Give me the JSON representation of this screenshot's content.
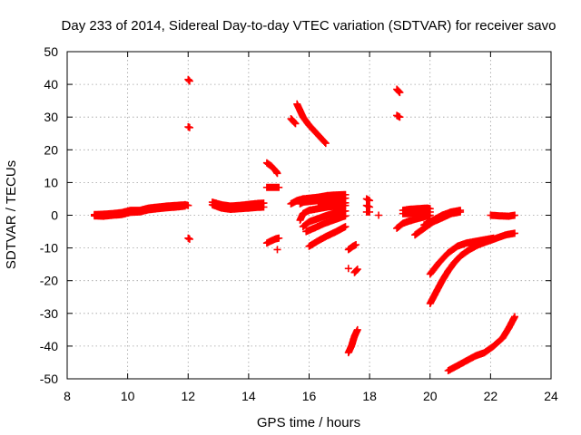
{
  "chart_data": {
    "type": "scatter",
    "title": "Day 233 of 2014, Sidereal Day-to-day VTEC variation (SDTVAR) for receiver savo",
    "xlabel": "GPS time / hours",
    "ylabel": "SDTVAR / TECUs",
    "xlim": [
      8,
      24
    ],
    "ylim": [
      -50,
      50
    ],
    "xticks": [
      8,
      10,
      12,
      14,
      16,
      18,
      20,
      22,
      24
    ],
    "yticks": [
      -50,
      -40,
      -30,
      -20,
      -10,
      0,
      10,
      20,
      30,
      40,
      50
    ],
    "grid": true,
    "marker": "+",
    "colors": {
      "series": "#ff0000",
      "axis": "#000000",
      "grid": "#a0a0a0"
    },
    "series": [
      {
        "name": "s1",
        "points": [
          [
            8.9,
            0.2
          ],
          [
            9.2,
            0.3
          ],
          [
            9.5,
            0.5
          ],
          [
            9.8,
            0.8
          ],
          [
            10.1,
            1.5
          ],
          [
            10.4,
            1.5
          ],
          [
            10.7,
            2.2
          ],
          [
            11.0,
            2.5
          ],
          [
            11.3,
            2.8
          ],
          [
            11.6,
            3.0
          ],
          [
            11.9,
            3.2
          ],
          [
            12.0,
            3.0
          ]
        ]
      },
      {
        "name": "s2",
        "points": [
          [
            8.9,
            -0.2
          ],
          [
            9.2,
            -0.3
          ],
          [
            9.5,
            0.0
          ],
          [
            9.8,
            0.2
          ],
          [
            10.1,
            0.9
          ],
          [
            10.4,
            1.0
          ],
          [
            10.7,
            1.7
          ],
          [
            11.0,
            2.0
          ],
          [
            11.3,
            2.3
          ],
          [
            11.6,
            2.5
          ],
          [
            11.9,
            2.8
          ]
        ]
      },
      {
        "name": "s3",
        "points": [
          [
            12.0,
            41.5
          ],
          [
            12.05,
            41.0
          ]
        ]
      },
      {
        "name": "s4",
        "points": [
          [
            12.0,
            27.0
          ],
          [
            12.05,
            26.8
          ]
        ]
      },
      {
        "name": "s5",
        "points": [
          [
            12.0,
            -7.0
          ],
          [
            12.05,
            -7.3
          ]
        ]
      },
      {
        "name": "s6",
        "points": [
          [
            12.8,
            4.0
          ],
          [
            13.1,
            3.2
          ],
          [
            13.4,
            2.8
          ],
          [
            13.7,
            3.0
          ],
          [
            14.0,
            3.3
          ],
          [
            14.3,
            3.6
          ],
          [
            14.5,
            3.7
          ]
        ]
      },
      {
        "name": "s7",
        "points": [
          [
            12.8,
            3.2
          ],
          [
            13.1,
            2.2
          ],
          [
            13.4,
            1.8
          ],
          [
            13.7,
            2.0
          ],
          [
            14.0,
            2.2
          ],
          [
            14.3,
            2.4
          ],
          [
            14.5,
            2.5
          ]
        ]
      },
      {
        "name": "s8",
        "points": [
          [
            14.6,
            16.0
          ],
          [
            14.75,
            15.0
          ],
          [
            14.9,
            13.5
          ],
          [
            14.95,
            12.8
          ]
        ]
      },
      {
        "name": "s9",
        "points": [
          [
            14.6,
            8.5
          ],
          [
            14.75,
            8.5
          ],
          [
            14.9,
            8.5
          ],
          [
            15.0,
            8.5
          ]
        ]
      },
      {
        "name": "s10",
        "points": [
          [
            14.6,
            -8.5
          ],
          [
            14.75,
            -7.8
          ],
          [
            14.9,
            -7.2
          ],
          [
            15.0,
            -7.0
          ]
        ]
      },
      {
        "name": "s11",
        "points": [
          [
            14.95,
            -10.5
          ]
        ]
      },
      {
        "name": "s12",
        "points": [
          [
            15.4,
            29.5
          ],
          [
            15.5,
            28.5
          ],
          [
            15.55,
            28.0
          ]
        ]
      },
      {
        "name": "s13",
        "points": [
          [
            15.6,
            34.0
          ],
          [
            15.7,
            32.0
          ],
          [
            15.8,
            30.0
          ],
          [
            16.0,
            27.5
          ],
          [
            16.2,
            25.5
          ],
          [
            16.4,
            23.5
          ],
          [
            16.55,
            22.0
          ]
        ]
      },
      {
        "name": "s14",
        "points": [
          [
            15.4,
            3.5
          ],
          [
            15.6,
            4.5
          ],
          [
            15.8,
            5.0
          ],
          [
            16.0,
            5.2
          ],
          [
            16.3,
            5.5
          ],
          [
            16.6,
            6.0
          ],
          [
            16.9,
            6.2
          ],
          [
            17.2,
            6.3
          ]
        ]
      },
      {
        "name": "s15",
        "points": [
          [
            15.7,
            3.5
          ],
          [
            15.8,
            4.0
          ],
          [
            16.0,
            4.2
          ],
          [
            16.3,
            4.5
          ],
          [
            16.6,
            4.8
          ],
          [
            17.0,
            5.0
          ],
          [
            17.2,
            5.2
          ]
        ]
      },
      {
        "name": "s16",
        "points": [
          [
            16.3,
            2.5
          ],
          [
            16.6,
            3.2
          ],
          [
            16.9,
            3.5
          ],
          [
            17.2,
            3.8
          ]
        ]
      },
      {
        "name": "s17",
        "points": [
          [
            15.7,
            -1.5
          ],
          [
            15.8,
            0.5
          ],
          [
            16.0,
            1.5
          ],
          [
            16.3,
            2.0
          ],
          [
            16.6,
            2.5
          ],
          [
            16.9,
            2.8
          ],
          [
            17.2,
            3.0
          ]
        ]
      },
      {
        "name": "s18",
        "points": [
          [
            15.8,
            -3.5
          ],
          [
            16.0,
            -2.0
          ],
          [
            16.3,
            -1.0
          ],
          [
            16.6,
            0.0
          ],
          [
            16.9,
            0.8
          ],
          [
            17.2,
            1.3
          ]
        ]
      },
      {
        "name": "s19",
        "points": [
          [
            15.9,
            -5.0
          ],
          [
            16.2,
            -3.8
          ],
          [
            16.5,
            -2.5
          ],
          [
            16.8,
            -1.5
          ],
          [
            17.1,
            -0.5
          ],
          [
            17.2,
            -0.2
          ]
        ]
      },
      {
        "name": "s20",
        "points": [
          [
            16.0,
            -9.5
          ],
          [
            16.3,
            -7.8
          ],
          [
            16.6,
            -6.3
          ],
          [
            16.9,
            -5.0
          ],
          [
            17.1,
            -4.0
          ],
          [
            17.2,
            -3.5
          ]
        ]
      },
      {
        "name": "s21",
        "points": [
          [
            17.3,
            -10.5
          ],
          [
            17.45,
            -9.5
          ],
          [
            17.55,
            -9.0
          ]
        ]
      },
      {
        "name": "s22",
        "points": [
          [
            17.3,
            -42.0
          ],
          [
            17.4,
            -40.0
          ],
          [
            17.5,
            -37.0
          ],
          [
            17.6,
            -35.0
          ]
        ]
      },
      {
        "name": "s23",
        "points": [
          [
            17.5,
            -17.5
          ],
          [
            17.6,
            -16.5
          ]
        ]
      },
      {
        "name": "s24",
        "points": [
          [
            17.3,
            -16.3
          ]
        ]
      },
      {
        "name": "s25",
        "points": [
          [
            17.9,
            5.0
          ],
          [
            18.0,
            4.5
          ]
        ]
      },
      {
        "name": "s26",
        "points": [
          [
            17.9,
            3.0
          ],
          [
            18.0,
            2.5
          ]
        ]
      },
      {
        "name": "s27",
        "points": [
          [
            17.9,
            1.0
          ],
          [
            18.0,
            1.0
          ]
        ]
      },
      {
        "name": "s28",
        "points": [
          [
            18.3,
            0.0
          ]
        ]
      },
      {
        "name": "s29",
        "points": [
          [
            18.9,
            38.5
          ],
          [
            19.0,
            37.5
          ]
        ]
      },
      {
        "name": "s30",
        "points": [
          [
            18.9,
            30.5
          ],
          [
            19.0,
            30.0
          ]
        ]
      },
      {
        "name": "s31",
        "points": [
          [
            18.9,
            -4.0
          ],
          [
            19.1,
            -2.5
          ],
          [
            19.3,
            -1.8
          ],
          [
            19.6,
            -1.0
          ],
          [
            19.9,
            -0.3
          ],
          [
            20.0,
            0.0
          ]
        ]
      },
      {
        "name": "s32",
        "points": [
          [
            19.1,
            1.5
          ],
          [
            19.3,
            1.8
          ],
          [
            19.6,
            2.0
          ],
          [
            19.9,
            2.2
          ],
          [
            20.0,
            2.0
          ]
        ]
      },
      {
        "name": "s33",
        "points": [
          [
            19.1,
            0.5
          ],
          [
            19.3,
            0.5
          ],
          [
            19.6,
            0.8
          ],
          [
            19.9,
            1.0
          ],
          [
            20.0,
            1.0
          ]
        ]
      },
      {
        "name": "s34",
        "points": [
          [
            19.5,
            -6.0
          ],
          [
            19.8,
            -4.0
          ],
          [
            20.1,
            -2.0
          ],
          [
            20.4,
            -0.8
          ],
          [
            20.7,
            0.5
          ],
          [
            21.0,
            1.0
          ]
        ]
      },
      {
        "name": "s35",
        "points": [
          [
            19.8,
            -3.0
          ],
          [
            20.1,
            -1.5
          ],
          [
            20.4,
            0.0
          ],
          [
            20.7,
            1.0
          ],
          [
            21.0,
            1.5
          ]
        ]
      },
      {
        "name": "s36",
        "points": [
          [
            20.0,
            -18.0
          ],
          [
            20.3,
            -14.5
          ],
          [
            20.6,
            -11.5
          ],
          [
            20.9,
            -9.5
          ],
          [
            21.2,
            -8.5
          ],
          [
            21.5,
            -8.0
          ],
          [
            21.8,
            -7.5
          ],
          [
            22.1,
            -7.0
          ]
        ]
      },
      {
        "name": "s37",
        "points": [
          [
            20.0,
            -27.0
          ],
          [
            20.2,
            -23.5
          ],
          [
            20.4,
            -20.0
          ],
          [
            20.6,
            -17.0
          ],
          [
            20.8,
            -14.5
          ],
          [
            21.0,
            -12.5
          ],
          [
            21.3,
            -10.5
          ],
          [
            21.6,
            -9.0
          ],
          [
            21.9,
            -8.0
          ],
          [
            22.2,
            -7.0
          ],
          [
            22.5,
            -6.0
          ],
          [
            22.8,
            -5.5
          ]
        ]
      },
      {
        "name": "s38",
        "points": [
          [
            22.0,
            0.0
          ],
          [
            22.3,
            -0.2
          ],
          [
            22.6,
            -0.3
          ],
          [
            22.8,
            0.0
          ]
        ]
      },
      {
        "name": "s39",
        "points": [
          [
            20.6,
            -47.5
          ],
          [
            20.9,
            -46.0
          ],
          [
            21.2,
            -44.5
          ],
          [
            21.5,
            -43.0
          ],
          [
            21.8,
            -42.0
          ],
          [
            22.1,
            -40.0
          ],
          [
            22.4,
            -37.5
          ],
          [
            22.6,
            -34.5
          ],
          [
            22.8,
            -31.0
          ]
        ]
      }
    ]
  }
}
